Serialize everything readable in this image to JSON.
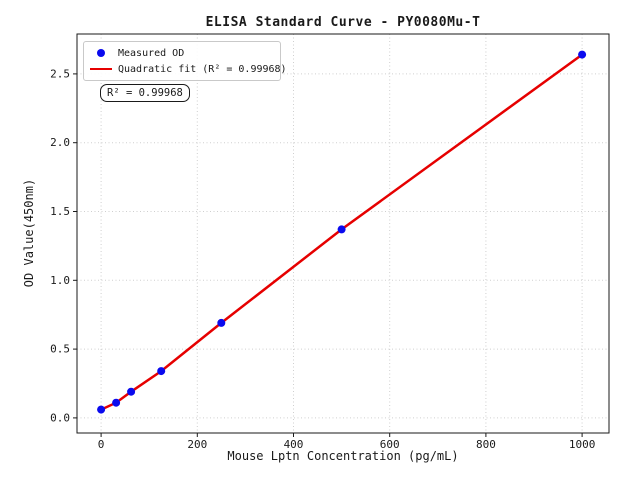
{
  "title": "ELISA Standard Curve - PY0080Mu-T",
  "legend": {
    "items": [
      {
        "marker": "dot",
        "color": "#0a0aee",
        "label": "Measured OD"
      },
      {
        "marker": "line",
        "color": "#e60000",
        "label": "Quadratic fit (R² = 0.99968)"
      }
    ]
  },
  "annotation": {
    "text": "R² = 0.99968"
  },
  "chart_data": {
    "type": "scatter",
    "title": "ELISA Standard Curve - PY0080Mu-T",
    "xlabel": "Mouse Lptn Concentration (pg/mL)",
    "ylabel": "OD Value(450nm)",
    "x": [
      0,
      31.25,
      62.5,
      125,
      250,
      500,
      1000
    ],
    "series": [
      {
        "name": "Measured OD",
        "type": "scatter",
        "color": "#0a0aee",
        "values": [
          0.06,
          0.11,
          0.19,
          0.34,
          0.69,
          1.37,
          2.64
        ]
      },
      {
        "name": "Quadratic fit (R² = 0.99968)",
        "type": "line",
        "color": "#e60000",
        "values": [
          0.06,
          0.11,
          0.19,
          0.34,
          0.69,
          1.37,
          2.64
        ]
      }
    ],
    "r_squared": 0.99968,
    "xlim": [
      -50,
      1056
    ],
    "ylim": [
      -0.11,
      2.79
    ],
    "x_ticks": {
      "values": [
        0,
        200,
        400,
        600,
        800,
        1000
      ],
      "labels": [
        "0",
        "200",
        "400",
        "600",
        "800",
        "1000"
      ]
    },
    "y_ticks": {
      "values": [
        0,
        0.5,
        1.0,
        1.5,
        2.0,
        2.5
      ],
      "labels": [
        "0.0",
        "0.5",
        "1.0",
        "1.5",
        "2.0",
        "2.5"
      ]
    },
    "grid": true,
    "grid_style": "dotted",
    "legend_position": "upper left"
  }
}
